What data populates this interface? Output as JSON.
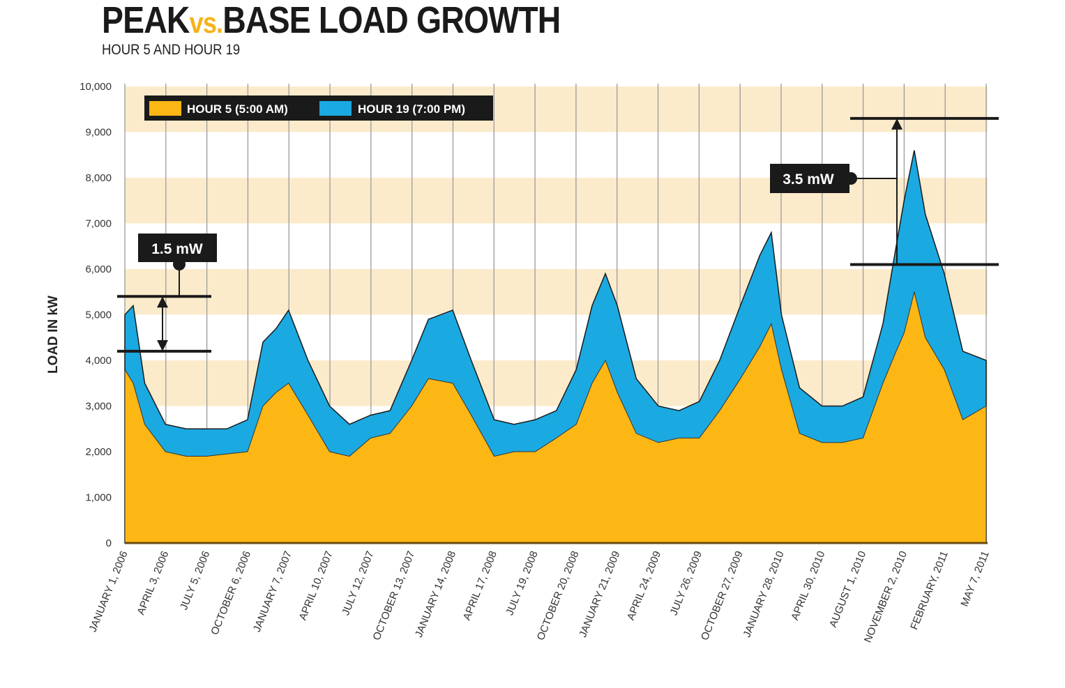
{
  "chart_data": {
    "type": "area",
    "title_parts": [
      "PEAK",
      "vs.",
      "BASE LOAD GROWTH"
    ],
    "subtitle": "HOUR 5 AND HOUR 19",
    "ylabel": "LOAD IN kW",
    "ylim": [
      0,
      10000
    ],
    "yticks": [
      "0",
      "1,000",
      "2,000",
      "3,000",
      "4,000",
      "5,000",
      "6,000",
      "7,000",
      "8,000",
      "9,000",
      "10,000"
    ],
    "xtick_labels": [
      "JANUARY 1, 2006",
      "APRIL 3, 2006",
      "JULY 5, 2006",
      "OCTOBER 6, 2006",
      "JANUARY 7, 2007",
      "APRIL 10, 2007",
      "JULY 12, 2007",
      "OCTOBER 13, 2007",
      "JANUARY 14, 2008",
      "APRIL 17, 2008",
      "JULY 19, 2008",
      "OCTOBER 20, 2008",
      "JANUARY 21, 2009",
      "APRIL 24, 2009",
      "JULY 26, 2009",
      "OCTOBER 27, 2009",
      "JANUARY 28, 2010",
      "APRIL 30, 2010",
      "AUGUST 1, 2010",
      "NOVEMBER 2, 2010",
      "FEBRUARY, 2011",
      "MAY 7, 2011"
    ],
    "grid": "vertical lines at ticks, alternating horizontal bands",
    "legend_placement": "top-left",
    "colors": {
      "hour5": "#FDB714",
      "hour19": "#1BA9E1",
      "band": "#FCEBCB",
      "legend_bg": "#1a1a1a"
    },
    "x": [
      "2006-01-01",
      "2006-01-20",
      "2006-02-15",
      "2006-04-03",
      "2006-05-20",
      "2006-07-05",
      "2006-08-20",
      "2006-10-06",
      "2006-11-10",
      "2006-12-10",
      "2007-01-07",
      "2007-02-20",
      "2007-04-10",
      "2007-05-25",
      "2007-07-12",
      "2007-08-25",
      "2007-10-13",
      "2007-11-20",
      "2008-01-14",
      "2008-02-25",
      "2008-04-17",
      "2008-06-01",
      "2008-07-19",
      "2008-09-05",
      "2008-10-20",
      "2008-11-25",
      "2008-12-25",
      "2009-01-21",
      "2009-03-05",
      "2009-04-24",
      "2009-06-10",
      "2009-07-26",
      "2009-09-10",
      "2009-10-27",
      "2009-12-10",
      "2010-01-05",
      "2010-01-28",
      "2010-03-10",
      "2010-04-30",
      "2010-06-15",
      "2010-08-01",
      "2010-09-15",
      "2010-10-15",
      "2010-11-02",
      "2010-11-25",
      "2010-12-20",
      "2011-02-01",
      "2011-03-15",
      "2011-05-07"
    ],
    "series": [
      {
        "name": "HOUR 5 (5:00 AM)",
        "values": [
          3800,
          3500,
          2600,
          2000,
          1900,
          1900,
          1950,
          2000,
          3000,
          3300,
          3500,
          2800,
          2000,
          1900,
          2300,
          2400,
          3000,
          3600,
          3500,
          2800,
          1900,
          2000,
          2000,
          2300,
          2600,
          3500,
          4000,
          3300,
          2400,
          2200,
          2300,
          2300,
          2900,
          3600,
          4300,
          4800,
          3800,
          2400,
          2200,
          2200,
          2300,
          3500,
          4200,
          4600,
          5500,
          4500,
          3800,
          2700,
          3000
        ]
      },
      {
        "name": "HOUR 19 (7:00 PM)",
        "values": [
          5000,
          5200,
          3500,
          2600,
          2500,
          2500,
          2500,
          2700,
          4400,
          4700,
          5100,
          4000,
          3000,
          2600,
          2800,
          2900,
          4000,
          4900,
          5100,
          4000,
          2700,
          2600,
          2700,
          2900,
          3800,
          5200,
          5900,
          5200,
          3600,
          3000,
          2900,
          3100,
          4000,
          5200,
          6300,
          6800,
          5000,
          3400,
          3000,
          3000,
          3200,
          4800,
          6500,
          7500,
          8600,
          7200,
          5900,
          4200,
          4000
        ]
      }
    ],
    "annotations": [
      {
        "label": "1.5 mW",
        "from": 4200,
        "to": 5400
      },
      {
        "label": "3.5 mW",
        "from": 6100,
        "to": 9300
      }
    ]
  }
}
